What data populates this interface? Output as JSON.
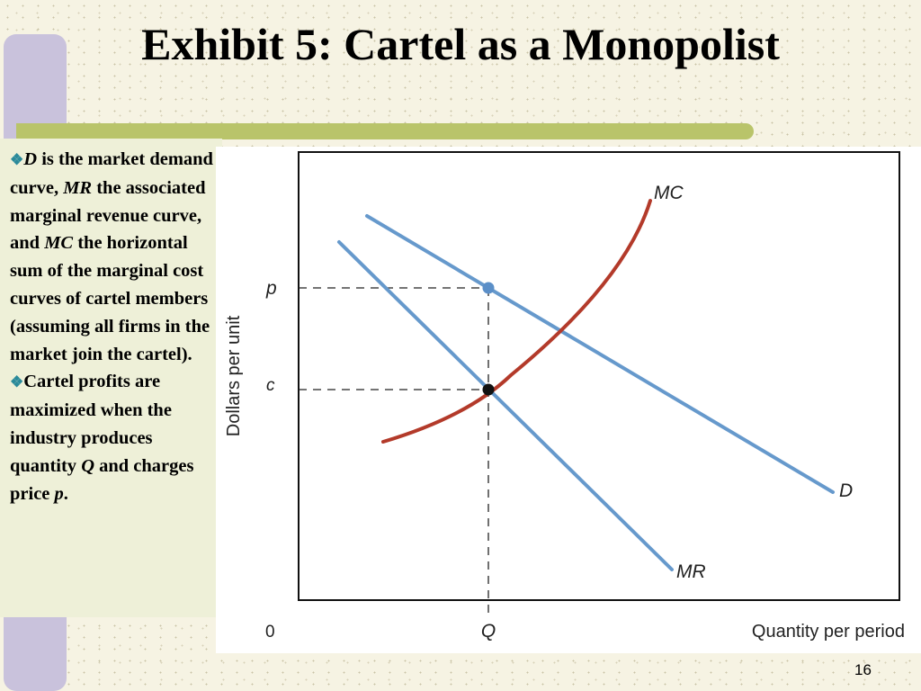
{
  "slide": {
    "title": "Exhibit 5: Cartel as a Monopolist",
    "page_number": "16"
  },
  "text_panel": {
    "bullet1": {
      "d": "D",
      "t1": " is the market demand curve, ",
      "mr": "MR",
      "t2": " the associated marginal revenue curve, and ",
      "mc": "MC",
      "t3": " the horizontal sum of the marginal cost curves of cartel members (assuming all firms in the market join the cartel)."
    },
    "bullet2": {
      "t1": "Cartel profits are maximized when the industry produces quantity ",
      "q": "Q",
      "t2": " and charges price ",
      "p": "p",
      "t3": "."
    }
  },
  "diagram": {
    "y_axis_label": "Dollars per unit",
    "x_axis_label": "Quantity per period",
    "origin_label": "0",
    "q_label": "Q",
    "p_label": "p",
    "c_label": "c",
    "curves": {
      "mc": "MC",
      "d": "D",
      "mr": "MR"
    },
    "colors": {
      "demand": "#6699cc",
      "marginal_cost": "#b33a2a",
      "accent_bar": "#b9c46a"
    }
  }
}
